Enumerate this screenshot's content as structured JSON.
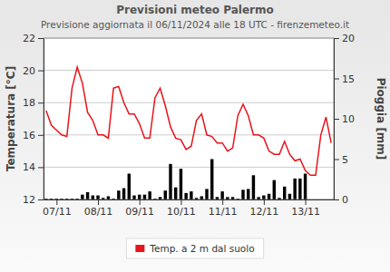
{
  "chart_data": {
    "type": "line",
    "title": "Previsioni meteo Palermo",
    "subtitle": "Previsione aggiornata il 06/11/2024 alle 18 UTC - firenzemeteo.it",
    "y_label": "Temperatura [°C]",
    "y2_label": "Pioggia [mm]",
    "categories": [
      null,
      null,
      "07/11",
      null,
      null,
      null,
      null,
      null,
      null,
      null,
      "08/11",
      null,
      null,
      null,
      null,
      null,
      null,
      null,
      "09/11",
      null,
      null,
      null,
      null,
      null,
      null,
      null,
      "10/11",
      null,
      null,
      null,
      null,
      null,
      null,
      null,
      "11/11",
      null,
      null,
      null,
      null,
      null,
      null,
      null,
      "12/11",
      null,
      null,
      null,
      null,
      null,
      null,
      null,
      "13/11",
      null,
      null,
      null,
      null,
      null
    ],
    "series": [
      {
        "name": "Temp. a 2 m dal suolo",
        "type": "line",
        "color": "#e8141b",
        "values": [
          17.5,
          16.6,
          16.3,
          16.0,
          15.9,
          18.9,
          20.2,
          19.2,
          17.4,
          16.9,
          16.0,
          16.0,
          15.8,
          18.9,
          19.0,
          18.0,
          17.3,
          17.3,
          16.7,
          15.8,
          15.8,
          18.3,
          18.9,
          17.8,
          16.5,
          15.8,
          15.7,
          15.1,
          15.3,
          16.9,
          17.3,
          16.0,
          15.9,
          15.5,
          15.5,
          15.0,
          15.2,
          17.2,
          17.9,
          17.2,
          16.0,
          16.0,
          15.8,
          15.0,
          14.8,
          14.8,
          15.6,
          14.8,
          14.4,
          14.5,
          13.8,
          13.5,
          13.5,
          16.0,
          17.1,
          15.5
        ]
      },
      {
        "type": "bar",
        "axis": "y2",
        "color": "#000000",
        "values": [
          0.1,
          0.1,
          0.1,
          0.1,
          0.1,
          0.1,
          0.1,
          0.6,
          0.9,
          0.5,
          0.5,
          0.2,
          0.4,
          0.1,
          1.1,
          1.4,
          3.2,
          0.5,
          0.6,
          0.6,
          1.0,
          0.1,
          0.3,
          1.1,
          4.4,
          1.5,
          3.8,
          0.8,
          1.0,
          0.2,
          0.4,
          1.3,
          5.0,
          0.3,
          1.0,
          0.3,
          0.3,
          0.1,
          1.2,
          1.3,
          3.0,
          0.3,
          0.5,
          0.7,
          2.4,
          0.2,
          1.6,
          0.7,
          2.6,
          2.6,
          3.2,
          0,
          0,
          0,
          0,
          0
        ]
      }
    ],
    "ylim": [
      12,
      22
    ],
    "yticks": [
      12,
      14,
      16,
      18,
      20,
      22
    ],
    "y2lim": [
      0,
      20
    ],
    "y2ticks": [
      0,
      5,
      10,
      15,
      20
    ],
    "grid": true,
    "legend": "bottom"
  }
}
